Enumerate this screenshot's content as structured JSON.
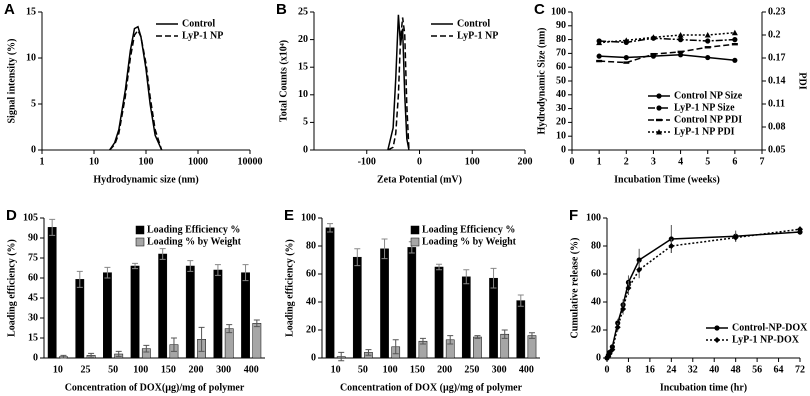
{
  "chart_data": [
    {
      "type": "line",
      "panel": "A",
      "xlabel": "Hydrodynamic  size (nm)",
      "ylabel": "Signal intensity (%)",
      "xlog": true,
      "xlim": [
        1,
        10000
      ],
      "xticks": [
        1,
        10,
        100,
        1000,
        10000
      ],
      "ylim": [
        0,
        15
      ],
      "yticks": [
        0,
        5,
        10,
        15
      ],
      "legend": "upper right",
      "x": [
        20,
        25,
        30,
        40,
        50,
        60,
        70,
        80,
        100,
        120,
        150,
        200
      ],
      "series": [
        {
          "name": "Control",
          "color": "#000000",
          "dash": "solid",
          "marker": "none",
          "values": [
            0,
            0.8,
            2.2,
            6.5,
            10.8,
            13.2,
            13.4,
            12.3,
            8.8,
            5,
            1.6,
            0
          ]
        },
        {
          "name": "LyP-1 NP",
          "color": "#000000",
          "dash": "dashed",
          "marker": "none",
          "values": [
            0,
            0.6,
            1.8,
            5.8,
            10,
            12.5,
            13,
            12.3,
            9.4,
            5.8,
            2.2,
            0
          ]
        }
      ]
    },
    {
      "type": "line",
      "panel": "B",
      "xlabel": "Zeta Potential (mV)",
      "ylabel": "Total Counts (x10⁴)",
      "xlim": [
        -200,
        200
      ],
      "xticks": [
        -100,
        0,
        100,
        200
      ],
      "ylim": [
        0,
        25
      ],
      "yticks": [
        0,
        5,
        10,
        15,
        20,
        25
      ],
      "legend": "upper right",
      "x": [
        -60,
        -50,
        -45,
        -40,
        -36,
        -32,
        -28,
        -24,
        -20
      ],
      "series": [
        {
          "name": "Control",
          "color": "#000000",
          "dash": "solid",
          "marker": "none",
          "values": [
            0,
            4,
            13,
            24.5,
            19,
            22,
            10,
            2,
            0
          ]
        },
        {
          "name": "LyP-1 NP",
          "color": "#000000",
          "dash": "dashed",
          "marker": "none",
          "values": [
            0,
            0.5,
            3,
            10,
            20,
            24,
            21,
            8,
            0
          ]
        }
      ]
    },
    {
      "type": "line",
      "panel": "C",
      "xlabel": "Incubation Time (weeks)",
      "ylabel": "Hydrodynamic Size (nm)",
      "y2label": "PDI",
      "xlim": [
        0,
        7
      ],
      "xticks": [
        0,
        1,
        2,
        3,
        4,
        5,
        6,
        7
      ],
      "ylim": [
        0,
        100
      ],
      "yticks": [
        0,
        10,
        20,
        30,
        40,
        50,
        60,
        70,
        80,
        90,
        100
      ],
      "y2lim": [
        0.05,
        0.23
      ],
      "y2ticks": [
        0.05,
        0.08,
        0.11,
        0.14,
        0.17,
        0.2,
        0.23
      ],
      "legend": "lower right",
      "x": [
        1,
        2,
        3,
        4,
        5,
        6
      ],
      "series": [
        {
          "name": "Control NP Size",
          "color": "#000000",
          "dash": "solid",
          "marker": "circle",
          "values": [
            68,
            67,
            68,
            69,
            67,
            65
          ]
        },
        {
          "name": "LyP-1 NP Size",
          "color": "#000000",
          "dash": "dashdot",
          "marker": "circle",
          "values": [
            79,
            78,
            81,
            80,
            79,
            80
          ]
        },
        {
          "name": "Control NP PDI",
          "color": "#000000",
          "dash": "dashed",
          "marker": "dash",
          "axis": "y2",
          "values": [
            0.166,
            0.164,
            0.175,
            0.178,
            0.184,
            0.188
          ]
        },
        {
          "name": "LyP-1 NP PDI",
          "color": "#000000",
          "dash": "dotted",
          "marker": "triangle",
          "axis": "y2",
          "values": [
            0.19,
            0.193,
            0.197,
            0.2,
            0.2,
            0.203
          ]
        }
      ]
    },
    {
      "type": "bar",
      "panel": "D",
      "xlabel": "Concentration of DOX(µg)/mg of polymer",
      "ylabel": "Loading efficiency (%)",
      "ylim": [
        0,
        105
      ],
      "yticks": [
        0,
        15,
        30,
        45,
        60,
        75,
        90,
        105
      ],
      "legend": "upper right",
      "categories": [
        "10",
        "25",
        "50",
        "100",
        "150",
        "200",
        "300",
        "400"
      ],
      "series": [
        {
          "name": "Loading Efficiency %",
          "color": "#000000",
          "values": [
            98,
            59,
            64,
            69,
            78,
            69,
            66,
            64
          ],
          "errors": [
            6,
            6,
            4,
            2,
            4,
            4,
            4,
            6
          ]
        },
        {
          "name": "Loading % by Weight",
          "color": "#a6a6a6",
          "values": [
            1,
            2,
            3,
            7,
            10,
            14,
            22,
            26
          ],
          "errors": [
            1,
            1.5,
            2,
            2.5,
            5,
            9,
            3,
            2.5
          ]
        }
      ]
    },
    {
      "type": "bar",
      "panel": "E",
      "xlabel": "Concentration of DOX (µg)/mg of polymer",
      "ylabel": "Loading efficiency (%)",
      "ylim": [
        0,
        100
      ],
      "yticks": [
        0,
        20,
        40,
        60,
        80,
        100
      ],
      "legend": "upper right",
      "categories": [
        "10",
        "50",
        "100",
        "150",
        "200",
        "250",
        "300",
        "400"
      ],
      "series": [
        {
          "name": "Loading Efficiency %",
          "color": "#000000",
          "values": [
            93,
            72,
            78,
            79,
            65,
            58,
            57,
            41
          ],
          "errors": [
            3,
            6,
            7,
            4,
            2,
            5,
            7,
            4
          ]
        },
        {
          "name": "Loading % by Weight",
          "color": "#a6a6a6",
          "values": [
            1,
            4,
            8,
            12,
            13,
            15,
            17,
            16
          ],
          "errors": [
            3,
            2,
            5,
            2,
            3,
            1,
            3,
            2
          ]
        }
      ]
    },
    {
      "type": "line",
      "panel": "F",
      "xlabel": "Incubation time (hr)",
      "ylabel": "Cumulative release (%)",
      "xlim": [
        0,
        72
      ],
      "xticks": [
        0,
        8,
        16,
        24,
        32,
        40,
        48,
        56,
        64,
        72
      ],
      "ylim": [
        0,
        100
      ],
      "yticks": [
        0,
        20,
        40,
        60,
        80,
        100
      ],
      "legend": "lower right",
      "x": [
        0,
        0.5,
        1,
        2,
        4,
        6,
        8,
        12,
        24,
        48,
        72
      ],
      "series": [
        {
          "name": "Control-NP-DOX",
          "color": "#000000",
          "dash": "solid",
          "marker": "circle",
          "values": [
            0,
            2,
            4,
            8,
            25,
            38,
            54,
            70,
            85,
            87,
            90
          ],
          "errors": [
            0,
            1,
            1,
            2,
            3,
            4,
            5,
            8,
            10,
            4,
            2
          ]
        },
        {
          "name": "LyP-1 NP-DOX",
          "color": "#000000",
          "dash": "dotted",
          "marker": "diamond",
          "values": [
            0,
            1,
            3,
            6,
            22,
            35,
            50,
            63,
            80,
            86,
            92
          ],
          "errors": [
            0,
            1,
            1,
            2,
            3,
            4,
            5,
            6,
            5,
            3,
            2
          ]
        }
      ]
    }
  ]
}
